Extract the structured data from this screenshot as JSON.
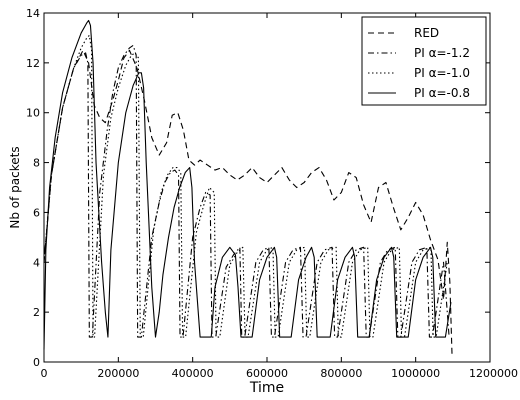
{
  "chart_data": {
    "type": "line",
    "title": "",
    "xlabel": "Time",
    "ylabel": "Nb of packets",
    "xlim": [
      0,
      1200000
    ],
    "ylim": [
      0,
      14
    ],
    "xticks": [
      0,
      200000,
      400000,
      600000,
      800000,
      1000000,
      1200000
    ],
    "xtick_labels": [
      "0",
      "200000",
      "400000",
      "600000",
      "800000",
      "1000000",
      "1200000"
    ],
    "yticks": [
      0,
      2,
      4,
      6,
      8,
      10,
      12,
      14
    ],
    "ytick_labels": [
      "0",
      "2",
      "4",
      "6",
      "8",
      "10",
      "12",
      "14"
    ],
    "grid": false,
    "legend_position": "top-right",
    "series": [
      {
        "name": "RED",
        "style": "dashed",
        "color": "#000000",
        "x": [
          0,
          20000,
          50000,
          80000,
          105000,
          120000,
          135000,
          150000,
          165000,
          185000,
          200000,
          215000,
          230000,
          250000,
          270000,
          290000,
          310000,
          330000,
          345000,
          360000,
          375000,
          390000,
          405000,
          420000,
          440000,
          460000,
          480000,
          500000,
          520000,
          540000,
          560000,
          580000,
          600000,
          620000,
          640000,
          660000,
          680000,
          700000,
          720000,
          740000,
          760000,
          780000,
          800000,
          820000,
          840000,
          860000,
          880000,
          900000,
          920000,
          940000,
          960000,
          980000,
          1000000,
          1020000,
          1040000,
          1060000,
          1075000,
          1085000,
          1092000,
          1098000
        ],
        "y": [
          4.0,
          7.5,
          10.2,
          11.8,
          12.5,
          12.0,
          10.3,
          9.8,
          9.6,
          10.5,
          11.3,
          12.2,
          12.5,
          11.8,
          10.5,
          9.0,
          8.3,
          8.8,
          9.9,
          10.0,
          9.3,
          8.1,
          7.9,
          8.1,
          7.9,
          7.7,
          7.8,
          7.5,
          7.3,
          7.5,
          7.8,
          7.4,
          7.2,
          7.5,
          7.8,
          7.3,
          7.0,
          7.2,
          7.6,
          7.8,
          7.3,
          6.5,
          6.8,
          7.6,
          7.4,
          6.3,
          5.6,
          7.0,
          7.2,
          6.2,
          5.3,
          5.8,
          6.4,
          5.9,
          4.9,
          4.1,
          2.5,
          4.8,
          3.2,
          0.2
        ]
      },
      {
        "name": "PI α=-1.2",
        "style": "dashdot",
        "color": "#000000",
        "x": [
          0,
          20000,
          50000,
          80000,
          100000,
          112000,
          118000,
          122000,
          126000,
          130000,
          150000,
          170000,
          185000,
          200000,
          215000,
          230000,
          240000,
          248000,
          252000,
          256000,
          262000,
          290000,
          310000,
          325000,
          340000,
          352000,
          362000,
          366000,
          370000,
          374000,
          400000,
          420000,
          435000,
          447000,
          452000,
          456000,
          462000,
          490000,
          510000,
          527000,
          532000,
          540000,
          570000,
          590000,
          605000,
          612000,
          620000,
          650000,
          670000,
          690000,
          697000,
          705000,
          735000,
          755000,
          775000,
          782000,
          790000,
          820000,
          840000,
          860000,
          867000,
          875000,
          905000,
          925000,
          945000,
          952000,
          960000,
          990000,
          1010000,
          1030000,
          1037000,
          1045000,
          1075000,
          1090000
        ],
        "y": [
          4.0,
          7.5,
          10.2,
          11.8,
          12.3,
          12.4,
          12.0,
          1.0,
          1.0,
          1.0,
          6.8,
          9.3,
          10.8,
          11.8,
          12.3,
          12.6,
          12.7,
          12.3,
          1.0,
          1.0,
          1.0,
          5.0,
          6.4,
          7.2,
          7.6,
          7.7,
          7.5,
          1.0,
          1.0,
          1.0,
          5.0,
          6.2,
          6.8,
          6.7,
          1.0,
          1.0,
          1.0,
          3.8,
          4.3,
          4.6,
          1.0,
          1.0,
          4.0,
          4.5,
          4.6,
          1.0,
          1.0,
          4.0,
          4.5,
          4.6,
          1.0,
          1.0,
          4.0,
          4.5,
          4.6,
          1.0,
          1.0,
          4.0,
          4.5,
          4.6,
          1.0,
          1.0,
          4.0,
          4.5,
          4.6,
          1.0,
          1.0,
          4.0,
          4.5,
          4.6,
          1.0,
          1.0,
          4.0,
          1.0
        ]
      },
      {
        "name": "PI α=-1.0",
        "style": "dotted",
        "color": "#000000",
        "x": [
          0,
          20000,
          50000,
          80000,
          100000,
          115000,
          122000,
          128000,
          132000,
          136000,
          160000,
          180000,
          200000,
          220000,
          235000,
          245000,
          254000,
          259000,
          263000,
          267000,
          295000,
          315000,
          332000,
          347000,
          358000,
          368000,
          373000,
          377000,
          381000,
          410000,
          430000,
          445000,
          458000,
          463000,
          467000,
          473000,
          500000,
          520000,
          535000,
          541000,
          549000,
          580000,
          600000,
          616000,
          622000,
          630000,
          660000,
          680000,
          701000,
          707000,
          715000,
          745000,
          765000,
          786000,
          792000,
          800000,
          830000,
          850000,
          871000,
          877000,
          885000,
          915000,
          935000,
          956000,
          962000,
          970000,
          1000000,
          1020000,
          1041000,
          1047000,
          1055000,
          1085000
        ],
        "y": [
          4.0,
          7.5,
          10.2,
          11.8,
          12.6,
          13.0,
          13.1,
          12.5,
          1.0,
          1.0,
          7.5,
          9.8,
          11.0,
          11.9,
          12.3,
          12.4,
          12.2,
          1.0,
          1.0,
          1.0,
          5.3,
          6.8,
          7.5,
          7.8,
          7.8,
          7.6,
          1.0,
          1.0,
          1.0,
          5.2,
          6.3,
          7.0,
          6.8,
          1.0,
          1.0,
          1.0,
          3.9,
          4.4,
          4.6,
          1.0,
          1.0,
          4.0,
          4.5,
          4.6,
          1.0,
          1.0,
          4.0,
          4.5,
          4.6,
          1.0,
          1.0,
          4.0,
          4.5,
          4.6,
          1.0,
          1.0,
          4.0,
          4.5,
          4.6,
          1.0,
          1.0,
          4.0,
          4.5,
          4.6,
          1.0,
          1.0,
          4.0,
          4.5,
          4.6,
          1.0,
          1.0,
          4.0
        ]
      },
      {
        "name": "PI α=-0.8",
        "style": "solid",
        "color": "#000000",
        "x": [
          0,
          5000,
          15000,
          30000,
          50000,
          75000,
          100000,
          115000,
          120000,
          125000,
          132000,
          140000,
          155000,
          165000,
          172000,
          180000,
          200000,
          220000,
          240000,
          255000,
          262000,
          268000,
          275000,
          290000,
          300000,
          310000,
          320000,
          335000,
          350000,
          365000,
          380000,
          392000,
          398000,
          405000,
          420000,
          435000,
          445000,
          450000,
          460000,
          480000,
          500000,
          515000,
          522000,
          530000,
          550000,
          560000,
          580000,
          600000,
          620000,
          626000,
          634000,
          655000,
          665000,
          685000,
          705000,
          720000,
          727000,
          735000,
          760000,
          770000,
          790000,
          810000,
          830000,
          836000,
          844000,
          860000,
          875000,
          895000,
          915000,
          935000,
          941000,
          949000,
          970000,
          980000,
          1000000,
          1020000,
          1040000,
          1046000,
          1054000,
          1080000,
          1095000
        ],
        "y": [
          0.5,
          4.5,
          7.0,
          9.0,
          10.8,
          12.2,
          13.2,
          13.6,
          13.7,
          13.5,
          12.0,
          8.0,
          4.0,
          2.0,
          1.0,
          4.5,
          8.0,
          10.0,
          11.1,
          11.6,
          11.6,
          11.0,
          8.0,
          3.0,
          1.0,
          2.0,
          3.5,
          5.0,
          6.2,
          7.0,
          7.6,
          7.8,
          7.0,
          4.0,
          1.0,
          1.0,
          1.0,
          1.0,
          3.0,
          4.2,
          4.6,
          4.3,
          3.0,
          1.0,
          1.0,
          1.0,
          3.3,
          4.2,
          4.6,
          4.2,
          1.0,
          1.0,
          1.0,
          3.3,
          4.2,
          4.6,
          4.2,
          1.0,
          1.0,
          1.0,
          3.3,
          4.2,
          4.6,
          4.2,
          1.0,
          1.0,
          1.0,
          3.3,
          4.2,
          4.6,
          4.2,
          1.0,
          1.0,
          1.0,
          3.3,
          4.2,
          4.6,
          4.2,
          1.0,
          1.0,
          2.4
        ]
      }
    ]
  }
}
